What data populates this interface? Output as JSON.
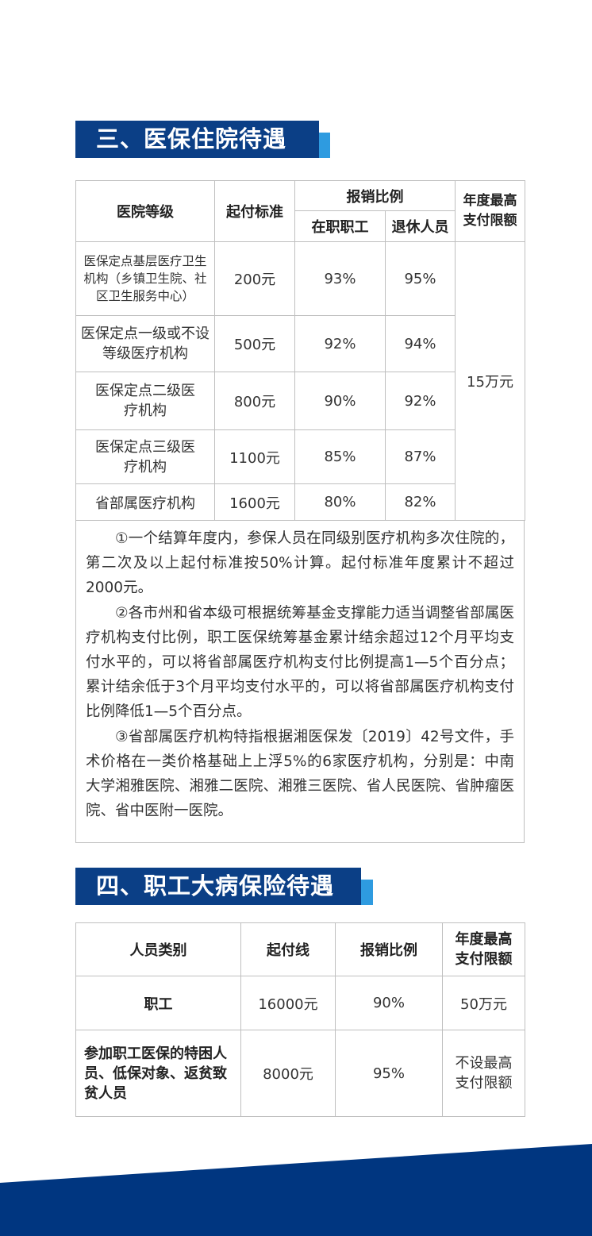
{
  "section3": {
    "title": "三、医保住院待遇",
    "headers": {
      "level": "医院等级",
      "threshold": "起付标准",
      "ratio": "报销比例",
      "employed": "在职职工",
      "retired": "退休人员",
      "max": "年度最高支付限额"
    },
    "rows": [
      {
        "level": "医保定点基层医疗卫生机构（乡镇卫生院、社区卫生服务中心）",
        "threshold": "200元",
        "employed": "93%",
        "retired": "95%"
      },
      {
        "level": "医保定点一级或不设等级医疗机构",
        "threshold": "500元",
        "employed": "92%",
        "retired": "94%"
      },
      {
        "level": "医保定点二级医疗机构",
        "threshold": "800元",
        "employed": "90%",
        "retired": "92%"
      },
      {
        "level": "医保定点三级医疗机构",
        "threshold": "1100元",
        "employed": "85%",
        "retired": "87%"
      },
      {
        "level": "省部属医疗机构",
        "threshold": "1600元",
        "employed": "80%",
        "retired": "82%"
      }
    ],
    "max_value": "15万元",
    "notes": [
      "①一个结算年度内，参保人员在同级别医疗机构多次住院的，第二次及以上起付标准按50%计算。起付标准年度累计不超过2000元。",
      "②各市州和省本级可根据统筹基金支撑能力适当调整省部属医疗机构支付比例，职工医保统筹基金累计结余超过12个月平均支付水平的，可以将省部属医疗机构支付比例提高1—5个百分点；累计结余低于3个月平均支付水平的，可以将省部属医疗机构支付比例降低1—5个百分点。",
      "③省部属医疗机构特指根据湘医保发〔2019〕42号文件，手术价格在一类价格基础上上浮5%的6家医疗机构，分别是：中南大学湘雅医院、湘雅二医院、湘雅三医院、省人民医院、省肿瘤医院、省中医附一医院。"
    ]
  },
  "section4": {
    "title": "四、职工大病保险待遇",
    "headers": {
      "category": "人员类别",
      "threshold": "起付线",
      "ratio": "报销比例",
      "max": "年度最高支付限额"
    },
    "rows": [
      {
        "category": "职工",
        "threshold": "16000元",
        "ratio": "90%",
        "max": "50万元"
      },
      {
        "category": "参加职工医保的特困人员、低保对象、返贫致贫人员",
        "threshold": "8000元",
        "ratio": "95%",
        "max": "不设最高支付限额"
      }
    ]
  },
  "colors": {
    "heading": "#0b3f86",
    "accent": "#2e9be0",
    "band": "#003680"
  }
}
